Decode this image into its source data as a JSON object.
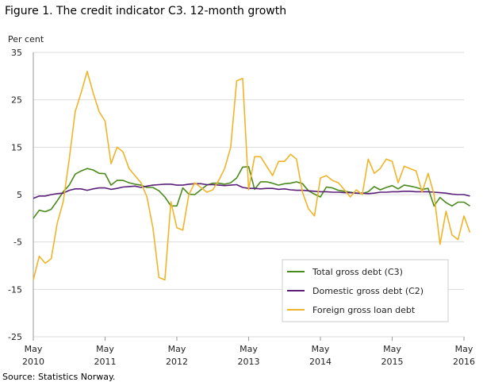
{
  "title": "Figure 1. The credit indicator C3. 12-month growth",
  "source": "Source: Statistics Norway.",
  "chart_data": {
    "type": "line",
    "ylabel": "Per cent",
    "ylim": [
      -25,
      35
    ],
    "yticks": [
      35,
      25,
      15,
      5,
      -5,
      -15,
      -25
    ],
    "xlim": [
      0,
      72
    ],
    "xticks": [
      {
        "index": 0,
        "month": "May",
        "year": "2010"
      },
      {
        "index": 12,
        "month": "May",
        "year": "2011"
      },
      {
        "index": 24,
        "month": "May",
        "year": "2012"
      },
      {
        "index": 36,
        "month": "May",
        "year": "2013"
      },
      {
        "index": 48,
        "month": "May",
        "year": "2014"
      },
      {
        "index": 60,
        "month": "May",
        "year": "2015"
      },
      {
        "index": 72,
        "month": "May",
        "year": "2016"
      }
    ],
    "grid": "horizontal",
    "legend_position": "bottom-right",
    "series": [
      {
        "name": "Total gross debt (C3)",
        "color": "#4a8a1c",
        "values": [
          0.0,
          1.7,
          1.4,
          1.9,
          3.7,
          5.6,
          7.0,
          9.3,
          10.0,
          10.5,
          10.2,
          9.5,
          9.4,
          7.0,
          8.0,
          8.0,
          7.5,
          7.2,
          7.0,
          6.5,
          6.5,
          5.8,
          4.5,
          2.6,
          2.6,
          6.4,
          5.1,
          5.0,
          6.0,
          7.0,
          7.4,
          7.4,
          7.2,
          7.5,
          8.5,
          10.8,
          10.9,
          6.1,
          7.7,
          7.7,
          7.4,
          7.0,
          7.3,
          7.4,
          7.7,
          7.3,
          5.8,
          5.1,
          4.5,
          6.6,
          6.4,
          5.9,
          5.7,
          5.5,
          5.3,
          5.2,
          5.6,
          6.7,
          6.0,
          6.5,
          6.9,
          6.2,
          7.0,
          6.8,
          6.5,
          6.1,
          6.3,
          2.6,
          4.4,
          3.3,
          2.6,
          3.4,
          3.4,
          2.6
        ]
      },
      {
        "name": "Domestic gross debt (C2)",
        "color": "#5b1f7a",
        "values": [
          4.2,
          4.7,
          4.7,
          5.0,
          5.2,
          5.3,
          5.9,
          6.2,
          6.2,
          5.9,
          6.2,
          6.4,
          6.4,
          6.1,
          6.3,
          6.6,
          6.7,
          6.8,
          6.5,
          6.8,
          7.0,
          7.1,
          7.2,
          7.2,
          7.0,
          7.0,
          7.2,
          7.3,
          7.3,
          7.1,
          7.1,
          7.0,
          6.9,
          7.0,
          7.1,
          6.5,
          6.3,
          6.3,
          6.2,
          6.3,
          6.3,
          6.1,
          6.2,
          6.0,
          5.9,
          5.9,
          5.8,
          5.7,
          5.6,
          5.6,
          5.5,
          5.5,
          5.4,
          5.4,
          5.3,
          5.3,
          5.2,
          5.3,
          5.5,
          5.5,
          5.6,
          5.6,
          5.7,
          5.7,
          5.6,
          5.6,
          5.6,
          5.5,
          5.4,
          5.3,
          5.1,
          5.0,
          5.0,
          4.7
        ]
      },
      {
        "name": "Foreign gross loan debt",
        "color": "#f0b429",
        "values": [
          -13.0,
          -8.0,
          -9.5,
          -8.5,
          -1.0,
          3.5,
          12.5,
          22.5,
          26.5,
          31.0,
          26.5,
          22.5,
          20.5,
          11.5,
          15.0,
          14.0,
          10.5,
          9.0,
          7.5,
          4.5,
          -2.0,
          -12.5,
          -13.0,
          3.5,
          -2.0,
          -2.5,
          5.0,
          7.5,
          6.5,
          5.5,
          6.0,
          8.0,
          10.5,
          15.0,
          29.0,
          29.5,
          6.0,
          13.0,
          13.0,
          11.0,
          9.0,
          12.0,
          12.0,
          13.5,
          12.5,
          5.5,
          2.0,
          0.5,
          8.5,
          9.0,
          8.0,
          7.5,
          6.0,
          4.5,
          6.0,
          5.0,
          12.5,
          9.5,
          10.5,
          12.5,
          12.0,
          7.5,
          11.0,
          10.5,
          10.0,
          5.5,
          9.5,
          5.0,
          -5.5,
          1.5,
          -3.5,
          -4.5,
          0.5,
          -3.0
        ]
      }
    ]
  }
}
